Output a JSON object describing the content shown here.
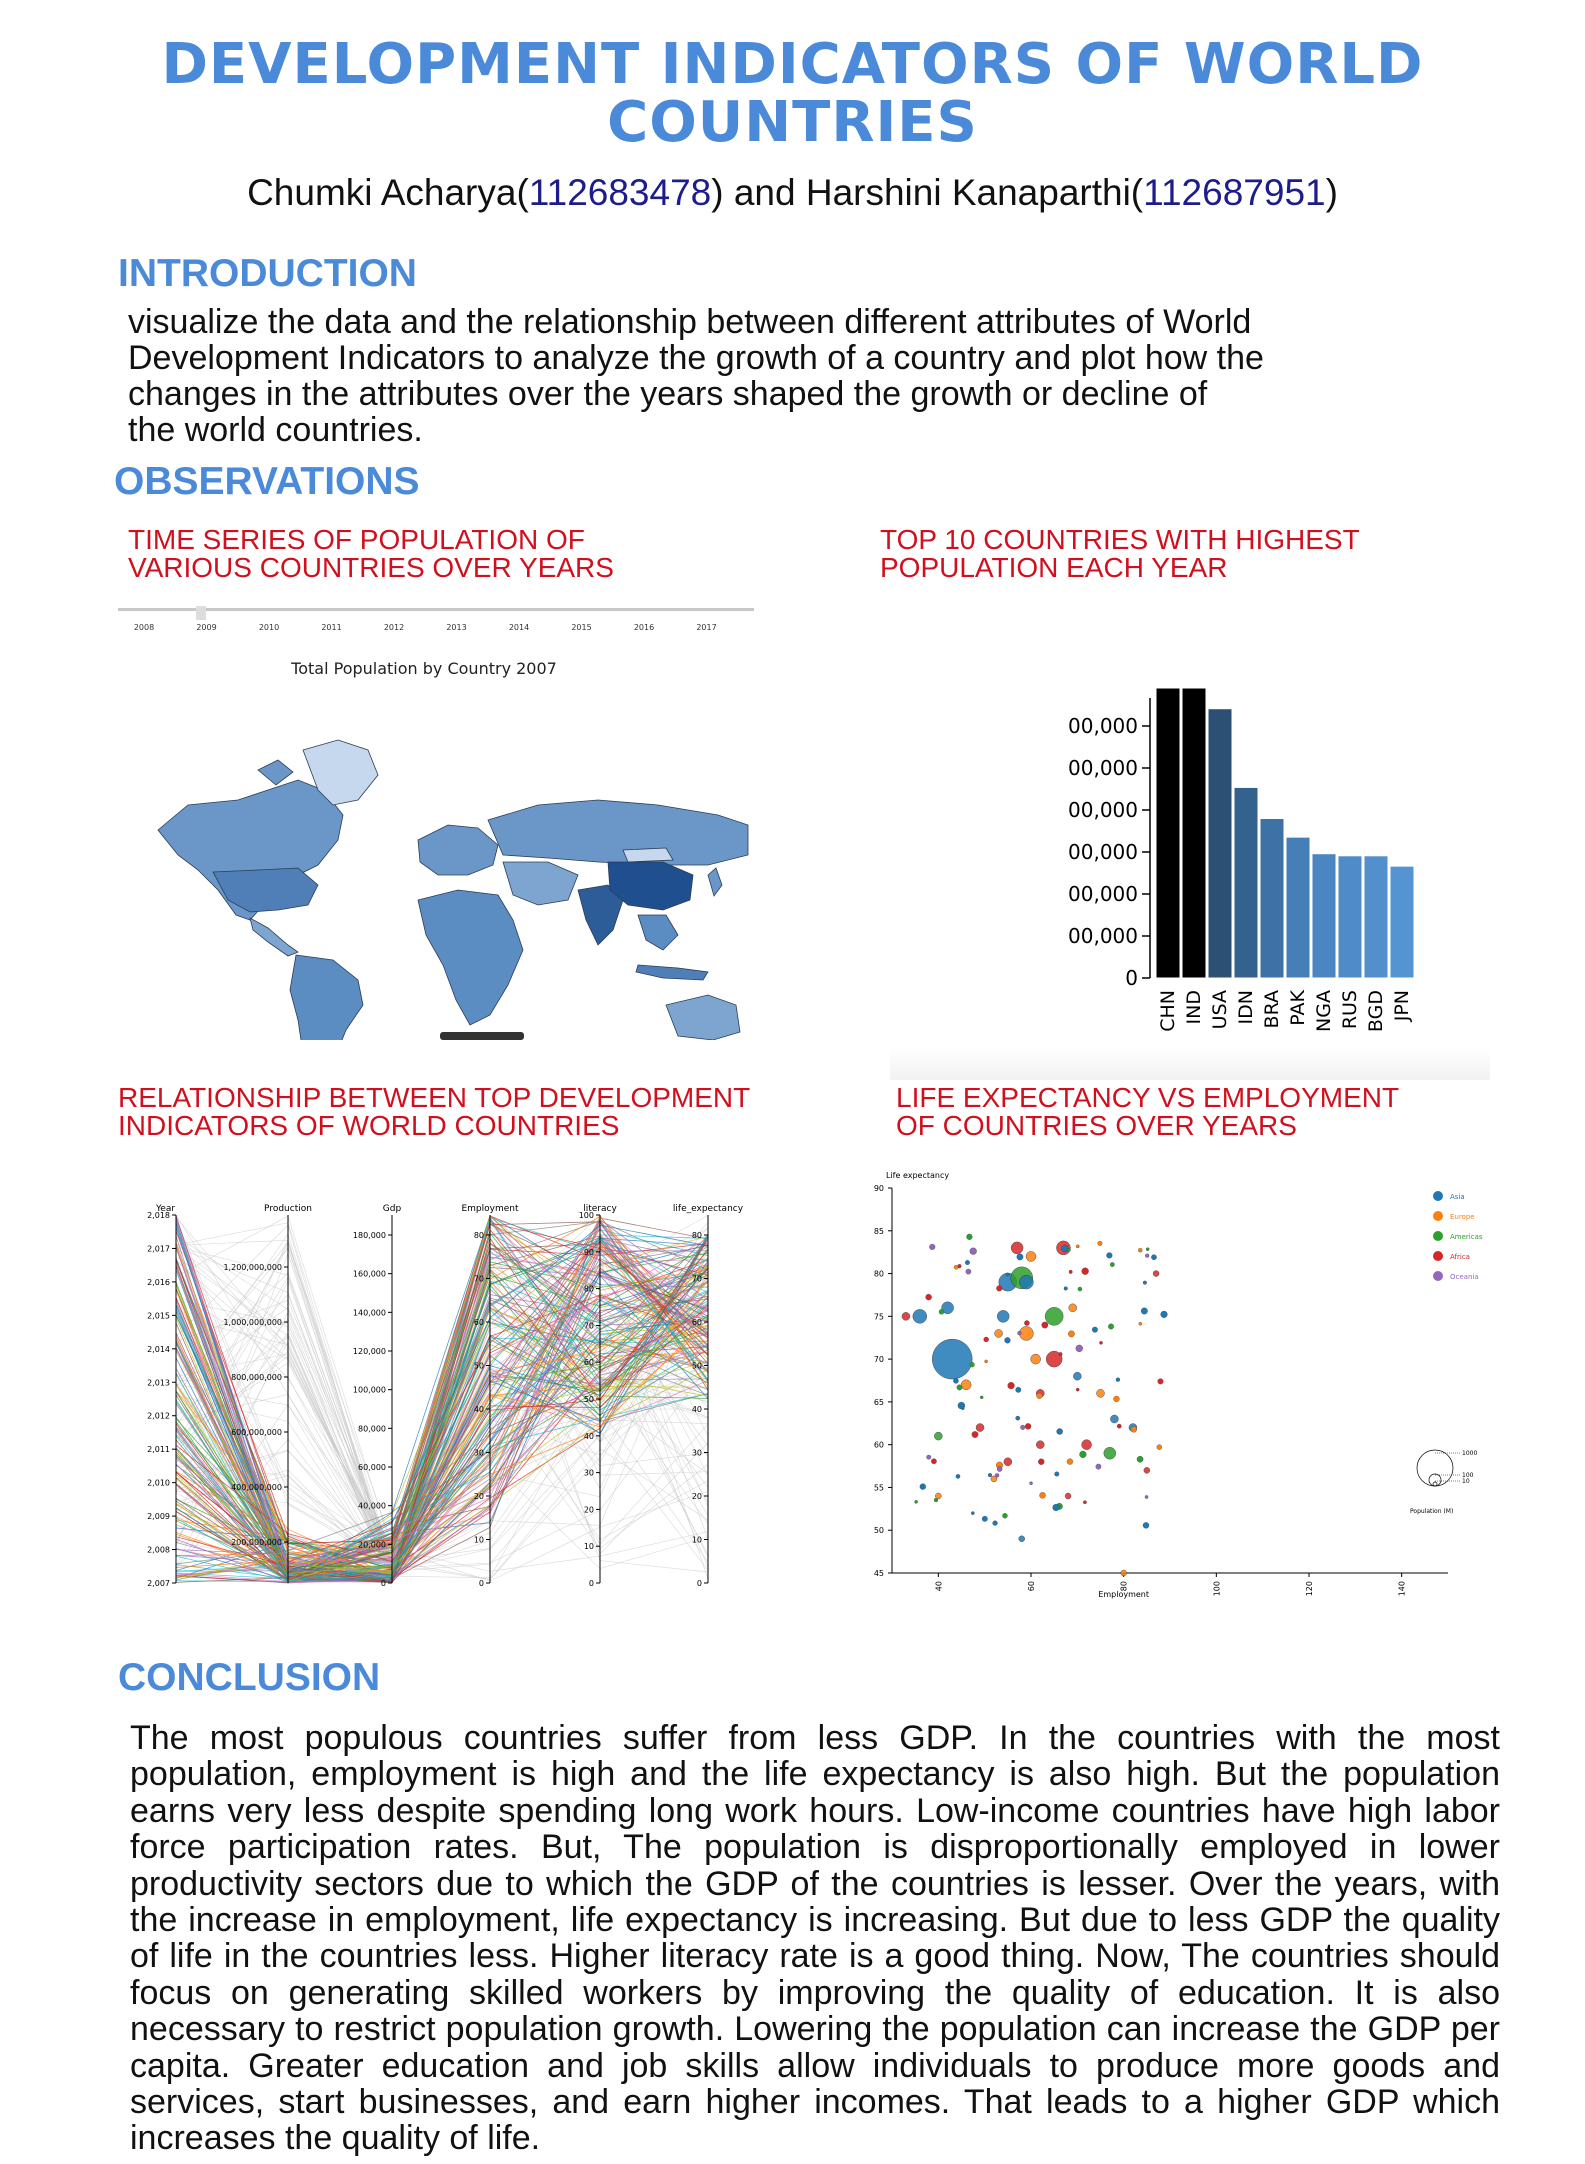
{
  "header": {
    "title_line1": "DEVELOPMENT INDICATORS OF WORLD",
    "title_line2": "COUNTRIES",
    "author1": "Chumki Acharya(",
    "author1_id": "112683478",
    "mid": ") and Harshini Kanaparthi(",
    "author2_id": "112687951",
    "end": ")"
  },
  "intro": {
    "heading": "INTRODUCTION",
    "lines": [
      "visualize the data and the relationship between different attributes of World",
      "Development Indicators to analyze the growth of a country and plot how the",
      "changes in the attributes over the years shaped the growth or decline of",
      "the world countries."
    ]
  },
  "observations": {
    "heading": "OBSERVATIONS",
    "fig1_caption_l1": "TIME SERIES OF POPULATION OF",
    "fig1_caption_l2": "VARIOUS COUNTRIES OVER YEARS",
    "fig2_caption_l1": "TOP 10 COUNTRIES WITH HIGHEST",
    "fig2_caption_l2": "POPULATION EACH YEAR",
    "fig3_caption_l1": "RELATIONSHIP BETWEEN TOP DEVELOPMENT",
    "fig3_caption_l2": "INDICATORS OF WORLD COUNTRIES",
    "fig4_caption_l1": "LIFE EXPECTANCY VS EMPLOYMENT",
    "fig4_caption_l2": "OF COUNTRIES OVER YEARS"
  },
  "map_panel": {
    "years": [
      "2008",
      "2009",
      "2010",
      "2011",
      "2012",
      "2013",
      "2014",
      "2015",
      "2016",
      "2017"
    ],
    "title": "Total Population by Country 2007"
  },
  "chart_data": [
    {
      "type": "bar",
      "categories": [
        "CHN",
        "IND",
        "USA",
        "IDN",
        "BRA",
        "PAK",
        "NGA",
        "RUS",
        "BGD",
        "JPN"
      ],
      "values": [
        1400000000,
        1400000000,
        1300000000,
        920000000,
        770000000,
        680000000,
        600000000,
        590000000,
        590000000,
        540000000
      ],
      "colors": [
        "#000000",
        "#000000",
        "#2b5073",
        "#34628e",
        "#3e72a6",
        "#467eb8",
        "#4b86c2",
        "#4f8bc8",
        "#528fcd",
        "#5594d3"
      ],
      "ytick_labels": [
        "0",
        "00,000",
        "00,000",
        "00,000",
        "00,000",
        "00,000",
        "00,000"
      ],
      "ylim": [
        0,
        1400000000
      ]
    },
    {
      "type": "line",
      "axes": [
        "Year",
        "Production",
        "Gdp",
        "Employment",
        "literacy",
        "life_expectancy"
      ],
      "tick_labels": {
        "Year": [
          "2,018",
          "2,017",
          "2,016",
          "2,015",
          "2,014",
          "2,013",
          "2,012",
          "2,011",
          "2,010",
          "2,009",
          "2,008",
          "2,007"
        ],
        "Production": [
          "1,200,000,000",
          "1,000,000,000",
          "800,000,000",
          "600,000,000",
          "400,000,000",
          "200,000,000"
        ],
        "Gdp": [
          "180,000",
          "160,000",
          "140,000",
          "120,000",
          "100,000",
          "80,000",
          "60,000",
          "40,000",
          "20,000",
          "0"
        ],
        "Employment": [
          "80",
          "70",
          "60",
          "50",
          "40",
          "30",
          "20",
          "10",
          "0"
        ],
        "literacy": [
          "100",
          "90",
          "80",
          "70",
          "60",
          "50",
          "40",
          "30",
          "20",
          "10",
          "0"
        ],
        "life_expectancy": [
          "80",
          "70",
          "60",
          "50",
          "40",
          "30",
          "20",
          "10",
          "0"
        ]
      }
    },
    {
      "type": "scatter",
      "xlabel": "Employment",
      "ylabel": "Life expectancy",
      "xlim": [
        30,
        150
      ],
      "ylim": [
        45,
        90
      ],
      "xticks": [
        "40",
        "60",
        "80",
        "100",
        "120",
        "140"
      ],
      "yticks": [
        "45",
        "50",
        "55",
        "60",
        "65",
        "70",
        "75",
        "80",
        "85",
        "90"
      ],
      "legend": [
        {
          "name": "Asia",
          "color": "#1f77b4"
        },
        {
          "name": "Europe",
          "color": "#ff7f0e"
        },
        {
          "name": "Americas",
          "color": "#2ca02c"
        },
        {
          "name": "Africa",
          "color": "#d62728"
        },
        {
          "name": "Oceania",
          "color": "#9467bd"
        }
      ],
      "size_legend_title": "Population (M)",
      "size_legend_values": [
        "1000",
        "100",
        "10"
      ],
      "points": [
        {
          "x": 43,
          "y": 70,
          "r": 20,
          "g": 0
        },
        {
          "x": 36,
          "y": 75,
          "r": 7,
          "g": 0
        },
        {
          "x": 42,
          "y": 76,
          "r": 6,
          "g": 0
        },
        {
          "x": 55,
          "y": 79,
          "r": 9,
          "g": 0
        },
        {
          "x": 58,
          "y": 79.5,
          "r": 11,
          "g": 2
        },
        {
          "x": 59,
          "y": 79,
          "r": 7,
          "g": 0
        },
        {
          "x": 54,
          "y": 75,
          "r": 6,
          "g": 0
        },
        {
          "x": 65,
          "y": 75,
          "r": 9,
          "g": 2
        },
        {
          "x": 59,
          "y": 73,
          "r": 7,
          "g": 1
        },
        {
          "x": 61,
          "y": 70,
          "r": 5,
          "g": 1
        },
        {
          "x": 65,
          "y": 70,
          "r": 8,
          "g": 3
        },
        {
          "x": 67,
          "y": 83,
          "r": 7,
          "g": 3
        },
        {
          "x": 57,
          "y": 83,
          "r": 6,
          "g": 3
        },
        {
          "x": 60,
          "y": 82,
          "r": 5,
          "g": 1
        },
        {
          "x": 77,
          "y": 59,
          "r": 6,
          "g": 2
        },
        {
          "x": 72,
          "y": 60,
          "r": 5,
          "g": 3
        },
        {
          "x": 46,
          "y": 67,
          "r": 5,
          "g": 1
        },
        {
          "x": 40,
          "y": 61,
          "r": 4,
          "g": 2
        },
        {
          "x": 49,
          "y": 62,
          "r": 4,
          "g": 3
        },
        {
          "x": 78,
          "y": 63,
          "r": 4,
          "g": 0
        },
        {
          "x": 33,
          "y": 75,
          "r": 4,
          "g": 3
        },
        {
          "x": 53,
          "y": 73,
          "r": 4,
          "g": 1
        },
        {
          "x": 69,
          "y": 76,
          "r": 4,
          "g": 1
        },
        {
          "x": 62,
          "y": 60,
          "r": 4,
          "g": 3
        },
        {
          "x": 70,
          "y": 68,
          "r": 4,
          "g": 0
        },
        {
          "x": 75,
          "y": 66,
          "r": 4,
          "g": 1
        },
        {
          "x": 82,
          "y": 62,
          "r": 4,
          "g": 0
        },
        {
          "x": 85,
          "y": 57,
          "r": 3,
          "g": 3
        },
        {
          "x": 55,
          "y": 58,
          "r": 4,
          "g": 3
        },
        {
          "x": 68,
          "y": 54,
          "r": 3,
          "g": 3
        },
        {
          "x": 58,
          "y": 49,
          "r": 3,
          "g": 0
        },
        {
          "x": 80,
          "y": 45,
          "r": 3,
          "g": 1
        },
        {
          "x": 87,
          "y": 80,
          "r": 3,
          "g": 3
        },
        {
          "x": 40,
          "y": 54,
          "r": 3,
          "g": 1
        },
        {
          "x": 52,
          "y": 56,
          "r": 3,
          "g": 1
        },
        {
          "x": 62,
          "y": 66,
          "r": 4,
          "g": 3
        }
      ]
    }
  ],
  "conclusion": {
    "heading": "CONCLUSION",
    "text": "The most populous countries suffer from less GDP. In the countries with the most population, employment is high and the life expectancy is also high. But the population earns very less despite spending long work hours. Low-income countries have high labor force participation rates. But, The population is disproportionally employed in lower productivity sectors due to which the GDP of the countries is lesser.   Over the years, with the increase in employment, life expectancy is increasing. But due to less GDP the quality of life in the countries less. Higher literacy rate is a  good thing. Now, The countries should focus on generating skilled workers by improving the quality of education. It is also necessary to restrict population growth. Lowering the population can increase the GDP per capita. Greater education and job skills allow individuals to produce more goods and services, start businesses, and earn higher incomes. That leads to a higher GDP which increases the quality of life."
  }
}
